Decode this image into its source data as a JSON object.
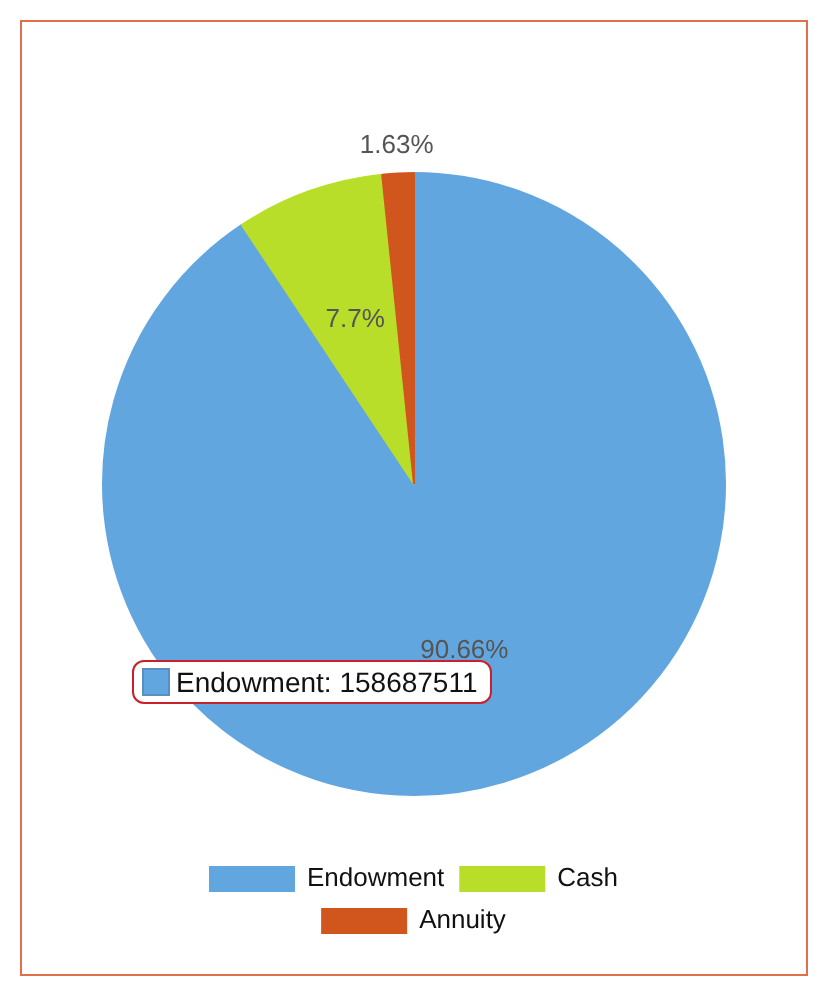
{
  "chart_data": {
    "type": "pie",
    "categories": [
      "Endowment",
      "Cash",
      "Annuity"
    ],
    "values": [
      90.66,
      7.7,
      1.63
    ],
    "colors": [
      "#62a6e0",
      "#b8de2a",
      "#d0561e"
    ],
    "value_labels": [
      "90.66%",
      "7.7%",
      "1.63%"
    ],
    "legend": "bottom",
    "annotations": [
      "Endowment: 158687511"
    ]
  }
}
